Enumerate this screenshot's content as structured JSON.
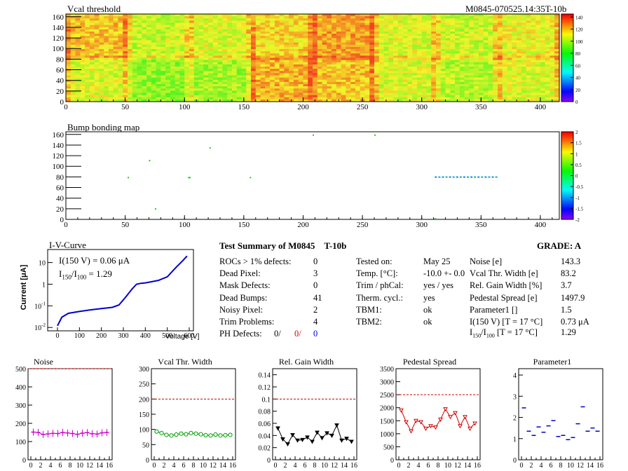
{
  "top": {
    "title": "Vcal threshold",
    "module_label": "M0845-070525.14:35T-10b",
    "x_ticks": [
      "0",
      "50",
      "100",
      "150",
      "200",
      "250",
      "300",
      "350",
      "400"
    ],
    "y_ticks": [
      "0",
      "20",
      "40",
      "60",
      "80",
      "100",
      "120",
      "140",
      "160"
    ],
    "z_ticks": [
      "0",
      "20",
      "40",
      "60",
      "80",
      "100",
      "120",
      "140"
    ]
  },
  "bump": {
    "title": "Bump bonding map",
    "x_ticks": [
      "0",
      "50",
      "100",
      "150",
      "200",
      "250",
      "300",
      "350",
      "400"
    ],
    "y_ticks": [
      "0",
      "20",
      "40",
      "60",
      "80",
      "100",
      "120",
      "140",
      "160"
    ],
    "z_ticks": [
      "-2",
      "-1.5",
      "-1",
      "-0.5",
      "0",
      "0.5",
      "1",
      "1.5",
      "2"
    ]
  },
  "iv": {
    "title": "I-V-Curve",
    "annot1": "I(150 V) = 0.06 μA",
    "annot2_a": "I",
    "annot2_sub1": "150",
    "annot2_b": "/I",
    "annot2_sub2": "100",
    "annot2_c": " =  1.29",
    "ylabel": "Current [μA]",
    "xlabel": "Voltage [V]",
    "x_ticks": [
      "0",
      "100",
      "200",
      "300",
      "400",
      "500",
      "600"
    ]
  },
  "summary": {
    "title": "Test Summary of M0845",
    "tag": "T-10b",
    "grade": "GRADE:  A",
    "left": [
      {
        "label": "ROCs > 1% defects:",
        "value": "0"
      },
      {
        "label": "Dead Pixel:",
        "value": "3"
      },
      {
        "label": "Mask Defects:",
        "value": "0"
      },
      {
        "label": "Dead Bumps:",
        "value": "41"
      },
      {
        "label": "Noisy Pixel:",
        "value": "2"
      },
      {
        "label": "Trim Problems:",
        "value": "4"
      }
    ],
    "ph_label": "PH Defects:",
    "ph_v1": "0/",
    "ph_v2": "0/",
    "ph_v3": "0",
    "mid": [
      {
        "label": "Tested on:",
        "value": "May 25"
      },
      {
        "label": "Temp. [°C]:",
        "value": "-10.0 +- 0.0"
      },
      {
        "label": "Trim / phCal:",
        "value": "yes / yes"
      },
      {
        "label": "Therm. cycl.:",
        "value": "yes"
      },
      {
        "label": "TBM1:",
        "value": "ok"
      },
      {
        "label": "TBM2:",
        "value": "ok"
      }
    ],
    "right": [
      {
        "label": "Noise [e]",
        "value": "143.3"
      },
      {
        "label": "Vcal Thr. Width [e]",
        "value": "83.2"
      },
      {
        "label": "Rel. Gain Width [%]",
        "value": "3.7"
      },
      {
        "label": "Pedestal Spread [e]",
        "value": "1497.9"
      },
      {
        "label": "Parameter1 []",
        "value": "1.5"
      },
      {
        "label": "I(150 V)  [T = 17 °C]",
        "value": "0.73 μA"
      }
    ],
    "ratio_a": "I",
    "ratio_sub1": "150",
    "ratio_b": "/I",
    "ratio_sub2": "100",
    "ratio_c": "  [T = 17 °C]",
    "ratio_value": "1.29"
  },
  "chart_data": [
    {
      "type": "heatmap",
      "title": "Vcal threshold",
      "xlim": [
        0,
        416
      ],
      "ylim": [
        0,
        160
      ],
      "zlim": [
        0,
        140
      ]
    },
    {
      "type": "heatmap",
      "title": "Bump bonding map",
      "xlim": [
        0,
        416
      ],
      "ylim": [
        0,
        160
      ],
      "zlim": [
        -2,
        2
      ]
    },
    {
      "type": "line",
      "title": "I-V-Curve",
      "log_y": true,
      "xlim": [
        0,
        600
      ],
      "x": [
        0,
        20,
        50,
        100,
        150,
        200,
        250,
        280,
        310,
        340,
        360,
        380,
        400,
        430,
        460,
        500,
        540,
        570,
        590
      ],
      "y": [
        0.012,
        0.03,
        0.045,
        0.055,
        0.065,
        0.075,
        0.085,
        0.11,
        0.25,
        0.6,
        1.0,
        1.1,
        1.15,
        1.3,
        1.5,
        2.2,
        6,
        12,
        20
      ]
    },
    {
      "type": "line",
      "title": "Noise",
      "ylim": [
        0,
        500
      ],
      "yticks": [
        0,
        100,
        200,
        300,
        400,
        500
      ],
      "ref": 500,
      "color": "#d000d0",
      "x": [
        0,
        1,
        2,
        3,
        4,
        5,
        6,
        7,
        8,
        9,
        10,
        11,
        12,
        13,
        14,
        15
      ],
      "y": [
        152,
        150,
        139,
        142,
        145,
        144,
        150,
        147,
        144,
        140,
        146,
        149,
        143,
        141,
        148,
        150
      ]
    },
    {
      "type": "line",
      "title": "Vcal Thr. Width",
      "ylim": [
        0,
        300
      ],
      "yticks": [
        0,
        50,
        100,
        150,
        200,
        250,
        300
      ],
      "ref": 200,
      "color": "#00a000",
      "x": [
        0,
        1,
        2,
        3,
        4,
        5,
        6,
        7,
        8,
        9,
        10,
        11,
        12,
        13,
        14,
        15
      ],
      "y": [
        93,
        88,
        82,
        80,
        83,
        86,
        84,
        88,
        86,
        84,
        81,
        80,
        83,
        80,
        81,
        82
      ]
    },
    {
      "type": "line",
      "title": "Rel. Gain Width",
      "ylim": [
        0,
        0.15
      ],
      "yticks": [
        0,
        0.02,
        0.04,
        0.06,
        0.08,
        0.1,
        0.12,
        0.14
      ],
      "ref": 0.1,
      "color": "#000000",
      "x": [
        0,
        1,
        2,
        3,
        4,
        5,
        6,
        7,
        8,
        9,
        10,
        11,
        12,
        13,
        14,
        15
      ],
      "y": [
        0.052,
        0.034,
        0.026,
        0.041,
        0.032,
        0.033,
        0.037,
        0.03,
        0.045,
        0.036,
        0.044,
        0.04,
        0.057,
        0.032,
        0.035,
        0.03
      ]
    },
    {
      "type": "line",
      "title": "Pedestal Spread",
      "ylim": [
        0,
        3500
      ],
      "yticks": [
        0,
        500,
        1000,
        1500,
        2000,
        2500,
        3000,
        3500
      ],
      "ref": 2500,
      "color": "#d00000",
      "x": [
        0,
        1,
        2,
        3,
        4,
        5,
        6,
        7,
        8,
        9,
        10,
        11,
        12,
        13,
        14,
        15
      ],
      "y": [
        1900,
        1450,
        1100,
        1500,
        1450,
        1200,
        1300,
        1250,
        1550,
        1950,
        1650,
        1800,
        1300,
        1650,
        1200,
        1400
      ]
    },
    {
      "type": "scatter",
      "title": "Parameter1",
      "ylim": [
        0,
        4.3
      ],
      "yticks": [
        0,
        1,
        2,
        3,
        4
      ],
      "color": "#0000d0",
      "x": [
        0,
        1,
        2,
        3,
        4,
        5,
        6,
        7,
        8,
        9,
        10,
        11,
        12,
        13,
        14,
        15
      ],
      "y": [
        2.45,
        1.35,
        1.15,
        1.55,
        1.3,
        1.6,
        1.85,
        1.1,
        1.15,
        0.95,
        1.05,
        1.7,
        2.5,
        1.35,
        1.5,
        1.35
      ]
    }
  ]
}
